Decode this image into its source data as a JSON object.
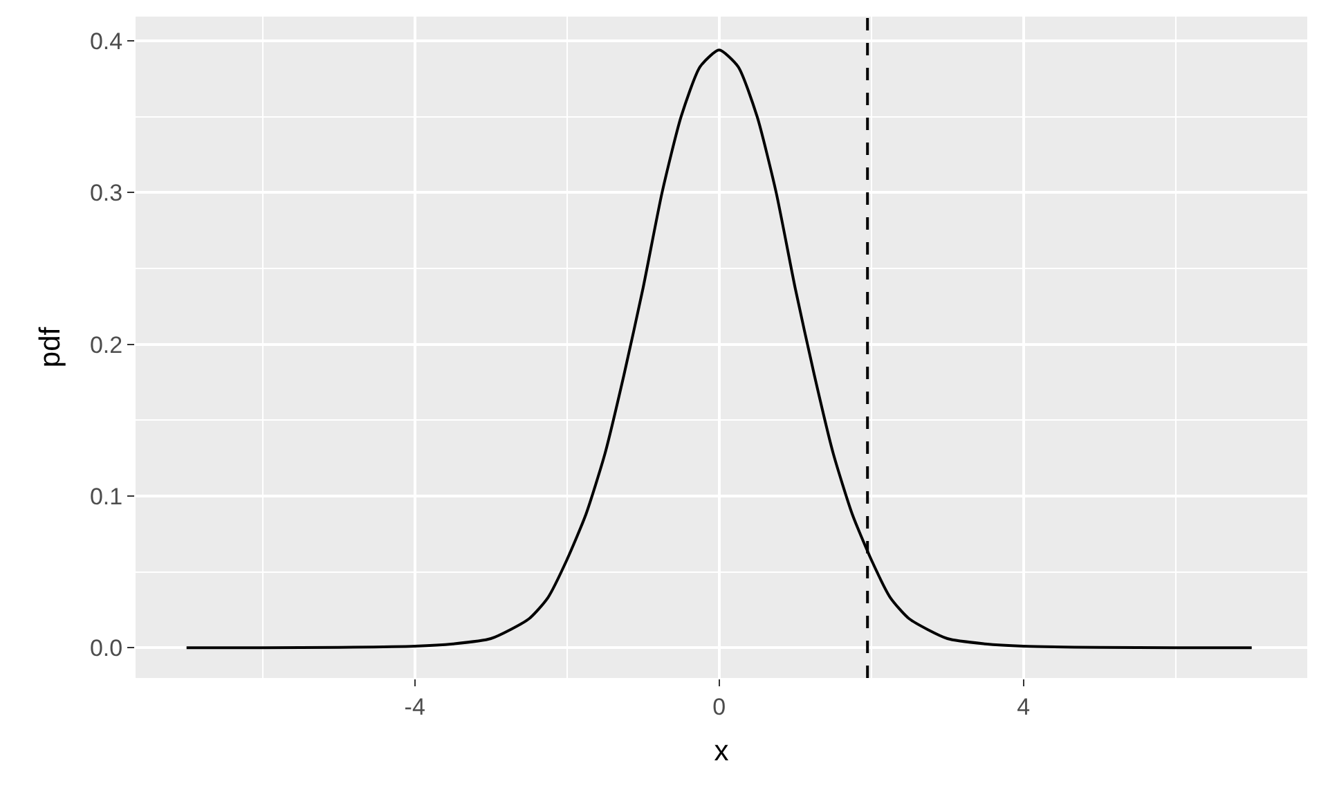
{
  "chart_data": {
    "type": "line",
    "xlabel": "x",
    "ylabel": "pdf",
    "x": [
      -7,
      -6,
      -5,
      -4,
      -3.5,
      -3,
      -2.5,
      -2.25,
      -2,
      -1.75,
      -1.5,
      -1.25,
      -1,
      -0.75,
      -0.5,
      -0.25,
      0,
      0.25,
      0.5,
      0.75,
      1,
      1.25,
      1.5,
      1.75,
      2,
      2.25,
      2.5,
      3,
      3.5,
      4,
      5,
      6,
      7
    ],
    "series": [
      {
        "color": "#000000",
        "values": [
          0.0,
          0.0,
          0.0002,
          0.001,
          0.0025,
          0.006,
          0.019,
          0.033,
          0.058,
          0.088,
          0.128,
          0.18,
          0.237,
          0.3,
          0.35,
          0.383,
          0.394,
          0.383,
          0.35,
          0.3,
          0.237,
          0.18,
          0.128,
          0.088,
          0.058,
          0.033,
          0.019,
          0.006,
          0.0025,
          0.001,
          0.0002,
          0.0,
          0.0
        ]
      }
    ],
    "xlim": [
      -7.67,
      7.73
    ],
    "ylim": [
      -0.02,
      0.416
    ],
    "xticks": [
      -4,
      0,
      4
    ],
    "yticks": [
      {
        "value": 0,
        "label": "0.0"
      },
      0.1,
      0.2,
      0.3,
      0.4
    ],
    "ref_lines": [
      {
        "axis": "x",
        "value": 1.95,
        "line_style": "dashed",
        "color": "#000000"
      }
    ],
    "grid": true,
    "legend": false,
    "marker": "none",
    "line_style": "solid"
  }
}
